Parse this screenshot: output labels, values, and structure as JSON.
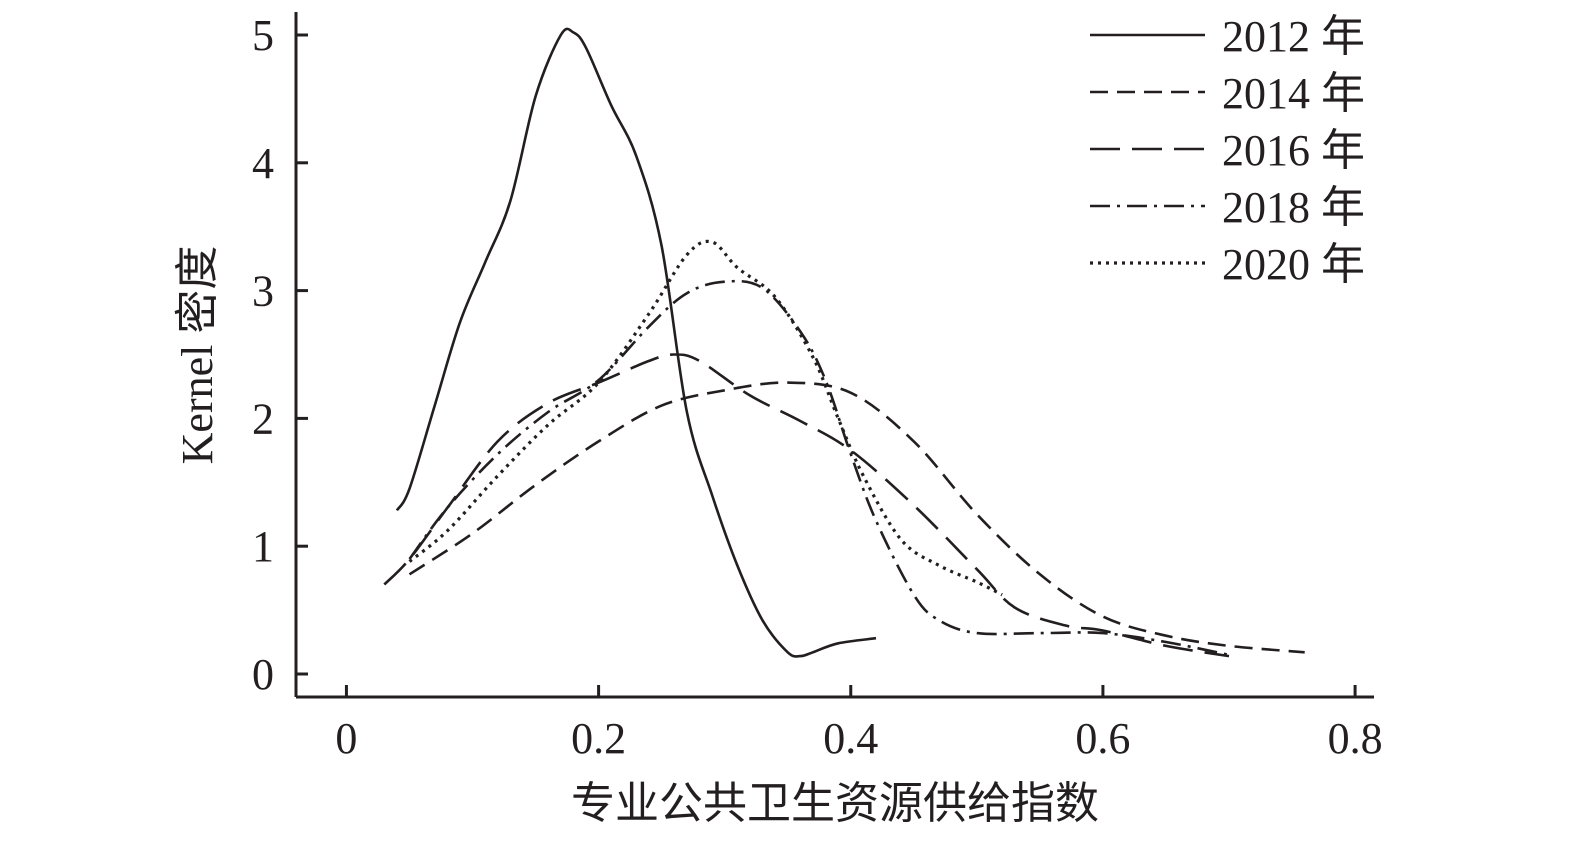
{
  "chart_data": {
    "type": "line",
    "title": "",
    "xlabel": "专业公共卫生资源供给指数",
    "ylabel": "Kernel 密度",
    "xlim": [
      -0.04,
      0.815
    ],
    "ylim": [
      -0.18,
      5.18
    ],
    "x_ticks": [
      0,
      0.2,
      0.4,
      0.6,
      0.8
    ],
    "x_tick_labels": [
      "0",
      "0.2",
      "0.4",
      "0.6",
      "0.8"
    ],
    "y_ticks": [
      0,
      1,
      2,
      3,
      4,
      5
    ],
    "y_tick_labels": [
      "0",
      "1",
      "2",
      "3",
      "4",
      "5"
    ],
    "grid": false,
    "legend_position": "top-right",
    "line_color": "#231f20",
    "series": [
      {
        "name": "2012 年",
        "dash": "solid",
        "x": [
          0.04,
          0.05,
          0.07,
          0.09,
          0.11,
          0.13,
          0.15,
          0.17,
          0.18,
          0.19,
          0.21,
          0.23,
          0.25,
          0.27,
          0.29,
          0.31,
          0.33,
          0.35,
          0.36,
          0.37,
          0.39,
          0.42
        ],
        "y": [
          1.28,
          1.45,
          2.1,
          2.75,
          3.22,
          3.7,
          4.52,
          5.0,
          5.02,
          4.9,
          4.45,
          4.05,
          3.35,
          2.05,
          1.4,
          0.85,
          0.42,
          0.17,
          0.14,
          0.17,
          0.24,
          0.28
        ]
      },
      {
        "name": "2014 年",
        "dash": "short-dash",
        "x": [
          0.05,
          0.1,
          0.15,
          0.2,
          0.25,
          0.3,
          0.35,
          0.4,
          0.45,
          0.5,
          0.55,
          0.6,
          0.65,
          0.7,
          0.76
        ],
        "y": [
          0.78,
          1.1,
          1.48,
          1.82,
          2.1,
          2.22,
          2.28,
          2.2,
          1.82,
          1.25,
          0.78,
          0.45,
          0.3,
          0.22,
          0.17
        ]
      },
      {
        "name": "2016 年",
        "dash": "long-dash",
        "x": [
          0.03,
          0.05,
          0.08,
          0.12,
          0.16,
          0.2,
          0.24,
          0.26,
          0.28,
          0.32,
          0.36,
          0.4,
          0.45,
          0.5,
          0.53,
          0.57,
          0.6,
          0.65,
          0.7
        ],
        "y": [
          0.7,
          0.9,
          1.3,
          1.82,
          2.12,
          2.28,
          2.45,
          2.5,
          2.45,
          2.18,
          1.98,
          1.75,
          1.32,
          0.82,
          0.52,
          0.38,
          0.34,
          0.22,
          0.14
        ]
      },
      {
        "name": "2018 年",
        "dash": "dash-dot",
        "x": [
          0.05,
          0.08,
          0.12,
          0.16,
          0.2,
          0.24,
          0.27,
          0.3,
          0.33,
          0.36,
          0.38,
          0.4,
          0.42,
          0.45,
          0.47,
          0.5,
          0.55,
          0.6,
          0.65,
          0.7
        ],
        "y": [
          0.9,
          1.3,
          1.72,
          2.05,
          2.3,
          2.72,
          2.98,
          3.07,
          3.02,
          2.68,
          2.3,
          1.72,
          1.2,
          0.62,
          0.42,
          0.32,
          0.32,
          0.32,
          0.25,
          0.15
        ]
      },
      {
        "name": "2020 年",
        "dash": "dotted",
        "x": [
          0.05,
          0.08,
          0.12,
          0.16,
          0.2,
          0.24,
          0.27,
          0.29,
          0.31,
          0.34,
          0.37,
          0.39,
          0.41,
          0.44,
          0.47,
          0.5,
          0.52
        ],
        "y": [
          0.88,
          1.12,
          1.55,
          1.95,
          2.28,
          2.82,
          3.28,
          3.38,
          3.18,
          2.95,
          2.48,
          2.0,
          1.55,
          1.05,
          0.85,
          0.72,
          0.62
        ]
      }
    ]
  }
}
